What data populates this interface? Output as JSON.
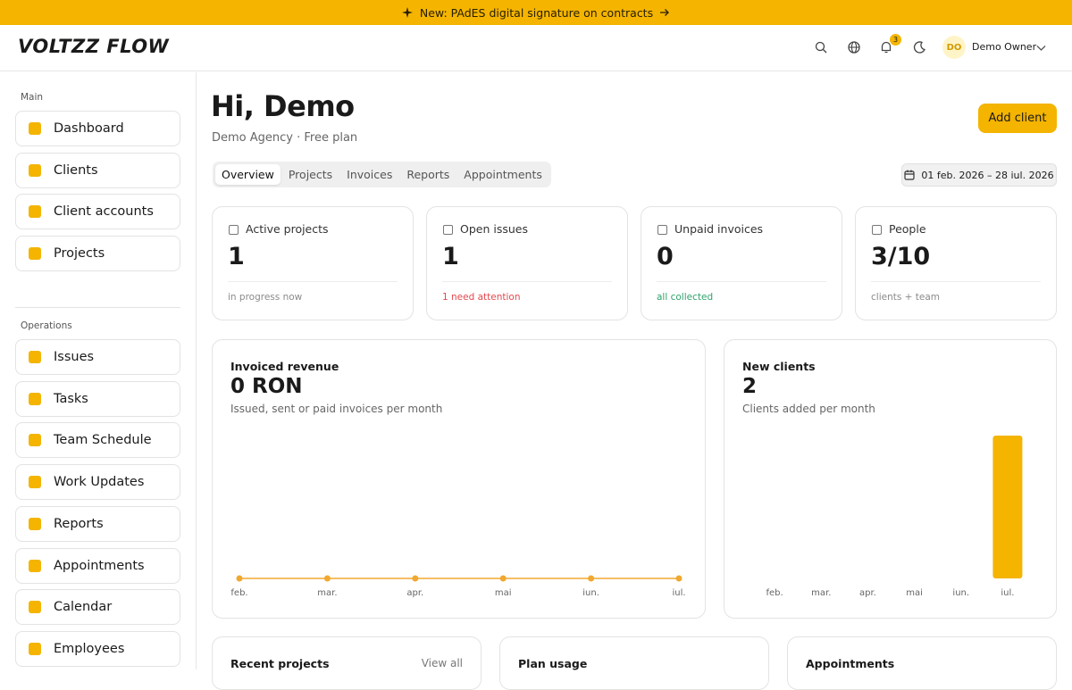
{
  "banner": {
    "text": "New: PAdES digital signature on contracts"
  },
  "header": {
    "logo": "VOLTZZ FLOW",
    "notifications": 3,
    "user_initials": "DO",
    "user_name": "Demo Owner"
  },
  "sidebar": {
    "sections": [
      {
        "title": "Main",
        "items": [
          "Dashboard",
          "Clients",
          "Client accounts",
          "Projects"
        ]
      },
      {
        "title": "Operations",
        "items": [
          "Issues",
          "Tasks",
          "Team Schedule",
          "Work Updates",
          "Reports",
          "Appointments",
          "Calendar",
          "Employees"
        ]
      }
    ]
  },
  "page": {
    "greeting": "Hi, Demo",
    "subtitle": "Demo Agency · Free plan",
    "add_button": "Add client",
    "tabs": [
      "Overview",
      "Projects",
      "Invoices",
      "Reports",
      "Appointments"
    ],
    "date_range": "01 feb. 2026 – 28 iul. 2026"
  },
  "stats": [
    {
      "label": "Active projects",
      "value": 1,
      "note": "in progress now",
      "color": "#8a8a8a"
    },
    {
      "label": "Open issues",
      "value": 1,
      "note": "1 need attention",
      "color": "#e5484d"
    },
    {
      "label": "Unpaid invoices",
      "value": 0,
      "note": "all collected",
      "color": "#30a46c"
    },
    {
      "label": "People",
      "value": "3/10",
      "note": "clients + team",
      "color": "#8a8a8a"
    }
  ],
  "chart_data": [
    {
      "type": "line",
      "title": "Invoiced revenue",
      "value": "0 RON",
      "subtitle": "Issued, sent or paid invoices per month",
      "categories": [
        "feb.",
        "mar.",
        "apr.",
        "mai",
        "iun.",
        "iul."
      ],
      "values": [
        0,
        0,
        0,
        0,
        0,
        0
      ],
      "ylim": [
        0,
        1
      ],
      "color": "#f0a830"
    },
    {
      "type": "bar",
      "title": "New clients",
      "value": 2,
      "subtitle": "Clients added per month",
      "categories": [
        "feb.",
        "mar.",
        "apr.",
        "mai",
        "iun.",
        "iul."
      ],
      "values": [
        0,
        0,
        0,
        0,
        0,
        2
      ],
      "ylim": [
        0,
        2
      ],
      "color": "#f4b400"
    }
  ],
  "bottom_cards": [
    {
      "title": "Recent projects",
      "link": "View all"
    },
    {
      "title": "Plan usage"
    },
    {
      "title": "Appointments"
    }
  ]
}
